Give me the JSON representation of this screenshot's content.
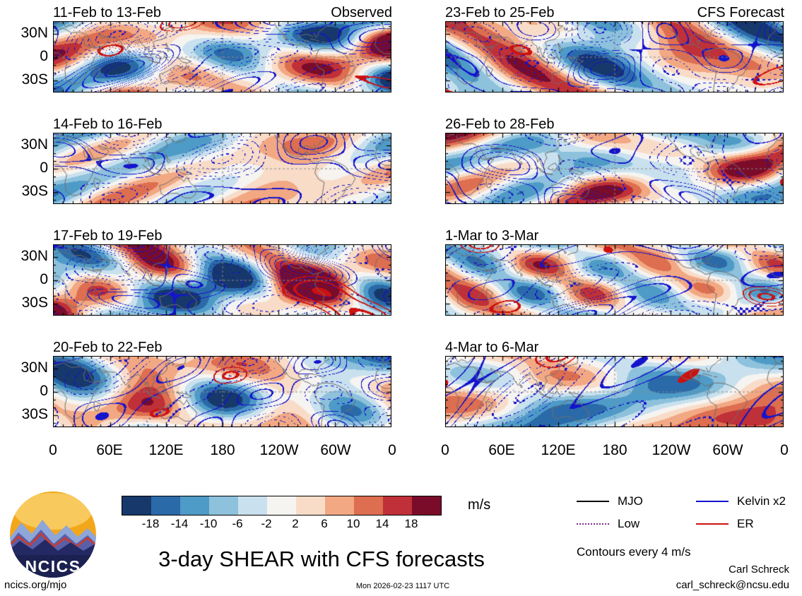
{
  "chart_data": {
    "type": "heatmap",
    "title": "3-day SHEAR with CFS forecasts",
    "panel_columns": [
      "Observed",
      "CFS Forecast"
    ],
    "panels": [
      {
        "title": "11-Feb to 13-Feb",
        "corner": "Observed"
      },
      {
        "title": "23-Feb to 25-Feb",
        "corner": "CFS Forecast"
      },
      {
        "title": "14-Feb to 16-Feb",
        "corner": ""
      },
      {
        "title": "26-Feb to 28-Feb",
        "corner": ""
      },
      {
        "title": "17-Feb to 19-Feb",
        "corner": ""
      },
      {
        "title": "1-Mar to 3-Mar",
        "corner": ""
      },
      {
        "title": "20-Feb to 22-Feb",
        "corner": ""
      },
      {
        "title": "4-Mar to 6-Mar",
        "corner": ""
      }
    ],
    "x_ticks": [
      "0",
      "60E",
      "120E",
      "180",
      "120W",
      "60W",
      "0"
    ],
    "y_ticks": [
      "30N",
      "0",
      "30S"
    ],
    "lon_range_deg": [
      0,
      360
    ],
    "lat_range_deg": [
      -45,
      45
    ],
    "contour_interval_ms": 4,
    "colorbar": {
      "levels": [
        -18,
        -14,
        -10,
        -6,
        -2,
        2,
        6,
        10,
        14,
        18
      ],
      "labels": [
        "-18",
        "-14",
        "-10",
        "-6",
        "-2",
        "2",
        "6",
        "10",
        "14",
        "18"
      ],
      "colors": [
        "#16386b",
        "#2b6aa8",
        "#4f9bc7",
        "#8dc1dc",
        "#c9e1ee",
        "#f6f4f1",
        "#f9dcc8",
        "#f2a883",
        "#dd6e50",
        "#bf3038",
        "#7a0c2a"
      ],
      "units": "m/s"
    },
    "legend": {
      "items": [
        {
          "label": "MJO",
          "color": "#000000",
          "style": "solid"
        },
        {
          "label": "Kelvin x2",
          "color": "#1414cc",
          "style": "solid"
        },
        {
          "label": "Low",
          "color": "#7b2d8b",
          "style": "dotted"
        },
        {
          "label": "ER",
          "color": "#cc1111",
          "style": "solid"
        }
      ],
      "note": "Contours every 4 m/s"
    }
  },
  "footer": {
    "main_title": "3-day SHEAR with CFS forecasts",
    "site": "ncics.org/mjo",
    "timestamp": "Mon 2026-02-23 1117 UTC",
    "author": "Carl Schreck",
    "email": "carl_schreck@ncsu.edu"
  },
  "logo": {
    "text": "NCICS"
  }
}
